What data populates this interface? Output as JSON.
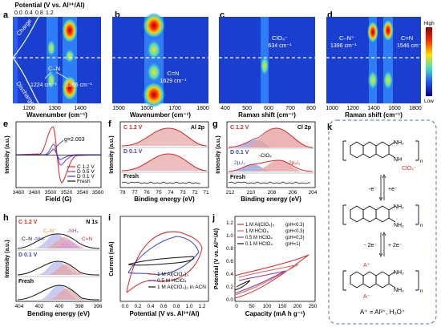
{
  "panels": {
    "a": {
      "letter": "a",
      "top_axis_label": "Potential (V vs. Al³⁺/Al)",
      "top_ticks": [
        "0.0",
        "0.4",
        "0.8",
        "1.2"
      ],
      "charge": "Charge",
      "discharge": "Discharge",
      "cn": "C–N",
      "peak1": "1224 cm⁻¹",
      "peak2": "1366 cm⁻¹",
      "xlabel": "Wavenumber (cm⁻¹)",
      "xticks": [
        "1200",
        "1300",
        "1400"
      ]
    },
    "b": {
      "letter": "b",
      "peak_name": "C=N",
      "peak": "1629 cm⁻¹",
      "xlabel": "Wavenumber (cm⁻¹)",
      "xticks": [
        "1500",
        "1600",
        "1700",
        "1800"
      ]
    },
    "c": {
      "letter": "c",
      "peak_name": "ClO₄⁻",
      "peak": "634 cm⁻¹",
      "xlabel": "Raman shift (cm⁻¹)",
      "xticks": [
        "400",
        "500",
        "600",
        "700",
        "800"
      ]
    },
    "d": {
      "letter": "d",
      "peak1_name": "C–N⁺",
      "peak1": "1396 cm⁻¹",
      "peak2_name": "C=N",
      "peak2": "1546 cm⁻¹",
      "xlabel": "Raman shift (cm⁻¹)",
      "xticks": [
        "1000",
        "1200",
        "1400",
        "1600",
        "1800"
      ],
      "cbar_high": "High",
      "cbar_low": "Low"
    },
    "e": {
      "letter": "e",
      "g": "g=2.003",
      "legend": [
        "C 1.2 V",
        "D 0.5 V",
        "D 0.1 V",
        "Fresh"
      ],
      "xlabel": "Field (G)",
      "ylabel": "Intensity (a.u.)",
      "xticks": [
        "3460",
        "3480",
        "3500",
        "3520",
        "3540",
        "3560"
      ]
    },
    "f": {
      "letter": "f",
      "title": "Al 2p",
      "c": "C 1.2 V",
      "d": "D 0.1 V",
      "fresh": "Fresh",
      "xlabel": "Binding energy (eV)",
      "ylabel": "Intensity (a.u.)",
      "xticks": [
        "78",
        "77",
        "76",
        "75",
        "74",
        "73",
        "72",
        "71"
      ]
    },
    "g": {
      "letter": "g",
      "title": "Cl 2p",
      "c": "C 1.2 V",
      "d": "D 0.1 V",
      "fresh": "Fresh",
      "p12": "2p₁/₂",
      "p32": "2p₃/₂",
      "clox": "-ClOₓ",
      "xlabel": "Binding energy (eV)",
      "ylabel": "Intensity (a.u.)",
      "xticks": [
        "212",
        "210",
        "208",
        "206",
        "204"
      ]
    },
    "h": {
      "letter": "h",
      "title": "N 1s",
      "c": "C 1.2 V",
      "d": "D 0.1 V",
      "fresh": "Fresh",
      "l1": "C–N⁺",
      "l2": "-NH₂",
      "l3": "C–N",
      "l4": "-NH-",
      "l5": "C=N",
      "xlabel": "Bending energy (eV)",
      "ylabel": "Intensity (a.u.)",
      "xticks": [
        "404",
        "402",
        "400",
        "398",
        "396"
      ]
    },
    "i": {
      "letter": "i",
      "legend": [
        "1 M Al(ClO₄)₃",
        "0.5 M HClO₄",
        "1 M Al(ClO₄)₃ in ACN"
      ],
      "xlabel": "Potential (V vs. Al³⁺/Al)",
      "ylabel": "Current (mA)",
      "xticks": [
        "0.0",
        "0.2",
        "0.4",
        "0.6",
        "0.8",
        "1.0",
        "1.2"
      ]
    },
    "j": {
      "letter": "j",
      "legend": [
        "1 M Al(ClO₄)₃",
        "1 M HClO₄",
        "0.5 M HClO₄",
        "0.1 M HClO₄"
      ],
      "ph": [
        "(pH<0.3)",
        "(pH<0.3)",
        "(pH=0.3)",
        "(pH=1)"
      ],
      "xlabel": "Capacity (mA h g⁻¹)",
      "ylabel": "Potential (V vs. Al³⁺/Al)",
      "xticks": [
        "0",
        "50",
        "100",
        "150",
        "200",
        "250"
      ],
      "yticks": [
        "0.0",
        "0.2",
        "0.4",
        "0.6",
        "0.8",
        "1.0",
        "1.2"
      ]
    },
    "k": {
      "letter": "k",
      "plus_e": "+e⁻",
      "minus_e": "-e⁻",
      "plus_2e": "+ 2e⁻",
      "minus_2e": "- 2e⁻",
      "nh2": "NH₂",
      "nh": "NH",
      "n": "n",
      "cl": "ClO₄⁻",
      "aplus": "A⁺",
      "aminus": "A⁻",
      "footer": "A⁺ = Al³⁺, H₃O⁺"
    }
  },
  "colors": {
    "charge_red": "#d62728",
    "blue": "#3a3fc0",
    "purple": "#8b3aa8",
    "black": "#111111",
    "dashed_box": "#4a6fb5"
  }
}
